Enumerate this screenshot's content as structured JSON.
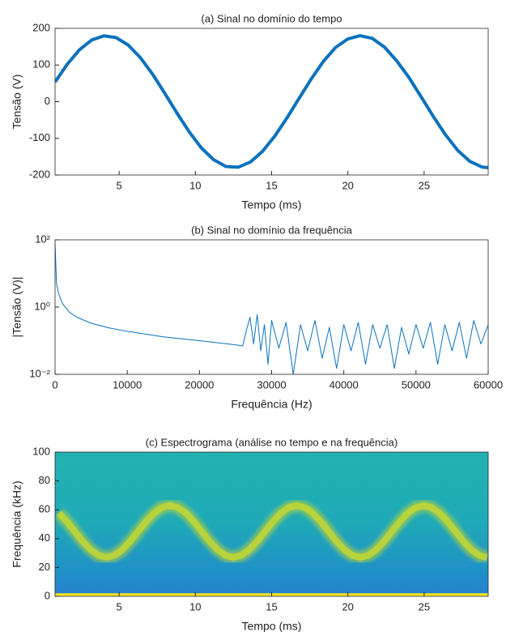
{
  "chart_data": [
    {
      "type": "line",
      "title": "(a) Sinal no domínio do tempo",
      "xlabel": "Tempo (ms)",
      "ylabel": "Tensão (V)",
      "color": "#0b72bd",
      "x": [
        0.8,
        1.6,
        2.4,
        3.2,
        4.0,
        4.8,
        5.6,
        6.4,
        7.2,
        8.0,
        8.8,
        9.6,
        10.4,
        11.2,
        12.0,
        12.8,
        13.6,
        14.4,
        15.2,
        16.0,
        16.8,
        17.6,
        18.4,
        19.2,
        20.0,
        20.8,
        21.6,
        22.4,
        23.2,
        24.0,
        24.8,
        25.6,
        26.4,
        27.2,
        28.0,
        28.8,
        29.2
      ],
      "values": [
        53.5,
        102.1,
        141.5,
        168.2,
        179.6,
        174.9,
        154.4,
        119.8,
        74.8,
        22.6,
        -31.5,
        -82.5,
        -126.5,
        -158.4,
        -176.8,
        -178.8,
        -164.8,
        -135.6,
        -94.1,
        -44.8,
        9.1,
        62.1,
        110.3,
        148.1,
        171.2,
        180.0,
        172.7,
        148.9,
        111.4,
        66.3,
        13.5,
        -40.2,
        -90.2,
        -132.7,
        -162.9,
        -178.4,
        -179.9
      ],
      "xlim": [
        0.8,
        29.2
      ],
      "ylim": [
        -200,
        200
      ],
      "xticks": [
        5,
        10,
        15,
        20,
        25
      ],
      "yticks": [
        -200,
        -100,
        0,
        100,
        200
      ]
    },
    {
      "type": "line",
      "title": "(b) Sinal no domínio da frequência",
      "xlabel": "Frequência (Hz)",
      "ylabel": "|Tensão (V)|",
      "color": "#0b72bd",
      "yscale": "log",
      "x": [
        0,
        200,
        500,
        1000,
        2000,
        3000,
        5000,
        7500,
        10000,
        15000,
        20000,
        25000,
        26000,
        26500,
        27000,
        27500,
        28000,
        28500,
        29000,
        29500,
        30000,
        31000,
        32000,
        33000,
        34000,
        35000,
        36000,
        37000,
        38000,
        39000,
        40000,
        41000,
        42000,
        43000,
        44000,
        45000,
        46000,
        47000,
        48000,
        49000,
        50000,
        51000,
        52000,
        53000,
        54000,
        55000,
        56000,
        57000,
        58000,
        59000,
        60000
      ],
      "values": [
        80,
        5,
        2.5,
        1.3,
        0.7,
        0.5,
        0.33,
        0.24,
        0.19,
        0.13,
        0.1,
        0.075,
        0.07,
        0.2,
        0.5,
        0.08,
        0.6,
        0.05,
        0.3,
        0.02,
        0.4,
        0.06,
        0.35,
        0.01,
        0.3,
        0.05,
        0.4,
        0.03,
        0.25,
        0.015,
        0.3,
        0.05,
        0.35,
        0.02,
        0.3,
        0.06,
        0.3,
        0.015,
        0.25,
        0.04,
        0.3,
        0.06,
        0.35,
        0.02,
        0.3,
        0.05,
        0.35,
        0.03,
        0.4,
        0.08,
        0.3
      ],
      "xlim": [
        0,
        60000
      ],
      "ylim": [
        0.01,
        100
      ],
      "xticks": [
        0,
        10000,
        20000,
        30000,
        40000,
        50000,
        60000
      ],
      "yticks": [
        {
          "value": 0.01,
          "label": "10⁻²"
        },
        {
          "value": 1,
          "label": "10⁰"
        },
        {
          "value": 100,
          "label": "10²"
        }
      ]
    },
    {
      "type": "spectrogram",
      "title": "(c) Espectrograma (análise no tempo e na frequência)",
      "xlabel": "Tempo (ms)",
      "ylabel": "Frequência (kHz)",
      "series": [
        {
          "color": "#b9d33c",
          "x": [
            1.05,
            1.57,
            2.09,
            2.61,
            3.13,
            3.65,
            4.17,
            4.69,
            5.21,
            5.73,
            6.25,
            6.77,
            7.29,
            7.81,
            8.33,
            8.85,
            9.37,
            9.89,
            10.41,
            10.93,
            11.45,
            11.97,
            12.49,
            13.01,
            13.53,
            14.05,
            14.57,
            15.09,
            15.61,
            16.13,
            16.65,
            17.17,
            17.69,
            18.21,
            18.73,
            19.25,
            19.77,
            20.29,
            20.81,
            21.33,
            21.85,
            22.37,
            22.89,
            23.41,
            23.93,
            24.45,
            24.97,
            25.49,
            26.01,
            26.53,
            27.05,
            27.57,
            28.09,
            28.61,
            29.13
          ],
          "values": [
            57.7,
            51.9,
            45,
            38.1,
            32.3,
            28.4,
            27,
            28.4,
            32.3,
            38.1,
            45,
            51.9,
            57.7,
            61.6,
            63,
            61.6,
            57.7,
            51.9,
            45,
            38.1,
            32.3,
            28.4,
            27,
            28.4,
            32.3,
            38.1,
            45,
            51.9,
            57.7,
            61.6,
            63,
            61.6,
            57.7,
            51.9,
            45,
            38.1,
            32.3,
            28.4,
            27,
            28.4,
            32.3,
            38.1,
            45,
            51.9,
            57.7,
            61.6,
            63,
            61.6,
            57.7,
            51.9,
            45,
            38.1,
            32.3,
            28.4,
            27
          ]
        },
        {
          "color": "#f6e620",
          "x": [
            0.8,
            29.2
          ],
          "values": [
            1,
            1
          ]
        }
      ],
      "xlim": [
        0.8,
        29.2
      ],
      "ylim": [
        0,
        100
      ],
      "xticks": [
        5,
        10,
        15,
        20,
        25
      ],
      "yticks": [
        0,
        20,
        40,
        60,
        80,
        100
      ]
    }
  ]
}
